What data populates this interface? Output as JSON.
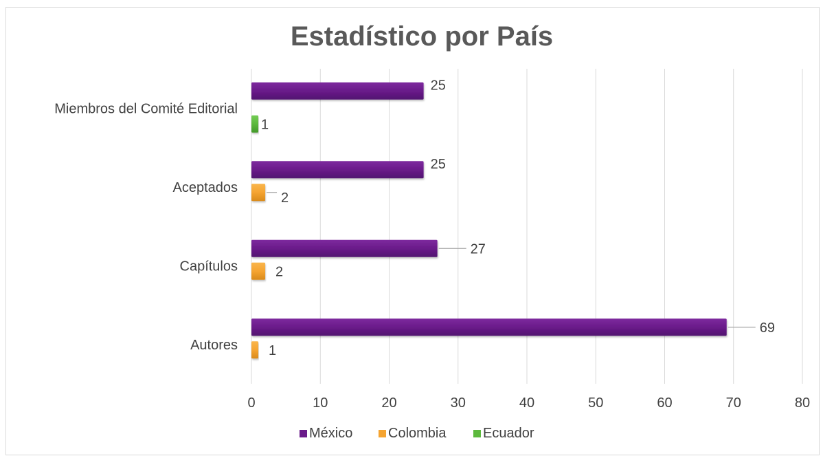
{
  "chart_data": {
    "type": "bar",
    "orientation": "horizontal",
    "title": "Estadístico por País",
    "categories": [
      "Autores",
      "Capítulos",
      "Aceptados",
      "Miembros del Comité Editorial"
    ],
    "series": [
      {
        "name": "México",
        "color": "#6a1b8a",
        "values": [
          69,
          27,
          25,
          25
        ]
      },
      {
        "name": "Colombia",
        "color": "#f5a431",
        "values": [
          1,
          2,
          2,
          null
        ]
      },
      {
        "name": "Ecuador",
        "color": "#5cb93d",
        "values": [
          null,
          null,
          null,
          1
        ]
      }
    ],
    "xlim": [
      0,
      80
    ],
    "xticks": [
      "0",
      "10",
      "20",
      "30",
      "40",
      "50",
      "60",
      "70",
      "80"
    ],
    "grid": true,
    "legend_position": "bottom"
  }
}
